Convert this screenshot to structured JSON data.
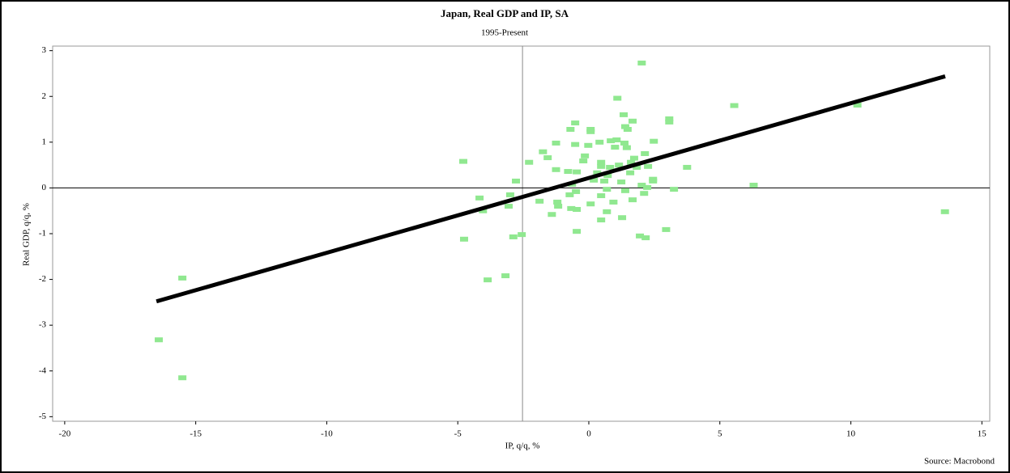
{
  "chart_data": {
    "type": "scatter",
    "title": "Japan, Real GDP and IP, SA",
    "subtitle": "1995-Present",
    "x_label": "IP, q/q, %",
    "y_label": "Real GDP, q/q, %",
    "source": "Source: Macrobond",
    "color": "#90e890",
    "x": [
      -16.41,
      -15.51,
      -15.51,
      -4.79,
      -4.76,
      -4.17,
      -4.04,
      -3.86,
      -3.18,
      -3.06,
      -3.0,
      -2.78,
      -2.88,
      -2.56,
      -2.28,
      -1.88,
      -1.75,
      -1.57,
      -1.41,
      -1.25,
      -1.25,
      -1.2,
      -1.17,
      -0.79,
      -0.73,
      -0.7,
      -0.67,
      -0.64,
      -0.52,
      -0.52,
      -0.46,
      -0.46,
      -0.46,
      -0.49,
      -0.21,
      -0.15,
      -0.02,
      0.07,
      0.07,
      0.07,
      0.19,
      0.32,
      0.41,
      0.47,
      0.47,
      0.47,
      0.47,
      0.59,
      0.69,
      0.69,
      0.72,
      0.81,
      0.84,
      0.94,
      1.0,
      1.06,
      1.09,
      1.15,
      1.24,
      1.27,
      1.33,
      1.36,
      1.39,
      1.39,
      1.45,
      1.48,
      1.58,
      1.61,
      1.67,
      1.67,
      1.73,
      1.83,
      1.95,
      2.02,
      2.02,
      2.11,
      2.14,
      2.17,
      2.23,
      2.26,
      2.45,
      2.45,
      2.48,
      2.95,
      3.07,
      3.07,
      3.25,
      3.75,
      5.55,
      6.29,
      10.25,
      13.59
    ],
    "values": [
      -3.32,
      -4.15,
      -1.97,
      0.58,
      -1.12,
      -0.22,
      -0.5,
      -2.01,
      -1.92,
      -0.4,
      -0.15,
      0.15,
      -1.07,
      -1.02,
      0.56,
      -0.29,
      0.79,
      0.66,
      -0.58,
      0.4,
      0.98,
      -0.31,
      -0.4,
      0.36,
      -0.15,
      1.28,
      -0.45,
      0.08,
      1.42,
      0.95,
      0.35,
      -0.47,
      -0.95,
      -0.08,
      0.59,
      0.7,
      0.93,
      1.28,
      1.23,
      -0.35,
      0.17,
      0.33,
      1.0,
      0.47,
      0.56,
      -0.7,
      -0.17,
      0.15,
      -0.03,
      -0.52,
      0.27,
      0.45,
      1.03,
      -0.31,
      0.89,
      1.05,
      1.96,
      0.5,
      0.13,
      -0.65,
      1.6,
      0.98,
      1.34,
      -0.06,
      0.88,
      1.28,
      0.33,
      0.56,
      1.46,
      -0.26,
      0.65,
      0.45,
      -1.05,
      2.73,
      0.06,
      -0.12,
      0.75,
      -1.09,
      0.01,
      0.47,
      0.19,
      0.15,
      1.02,
      -0.91,
      1.51,
      1.44,
      -0.03,
      0.45,
      1.8,
      0.06,
      1.81,
      -0.52
    ],
    "trend": {
      "x": [
        -16.5,
        13.6
      ],
      "values": [
        -2.48,
        2.44
      ],
      "color": "#000000"
    },
    "reference_lines": {
      "x": -2.53,
      "y": 0
    },
    "xlim": [
      -20.46,
      15.3
    ],
    "ylim": [
      -5.1,
      3.1
    ],
    "xticks": [
      -20,
      -15,
      -10,
      -5,
      0,
      5,
      10,
      15
    ],
    "yticks": [
      -5,
      -4,
      -3,
      -2,
      -1,
      0,
      1,
      2,
      3
    ]
  }
}
